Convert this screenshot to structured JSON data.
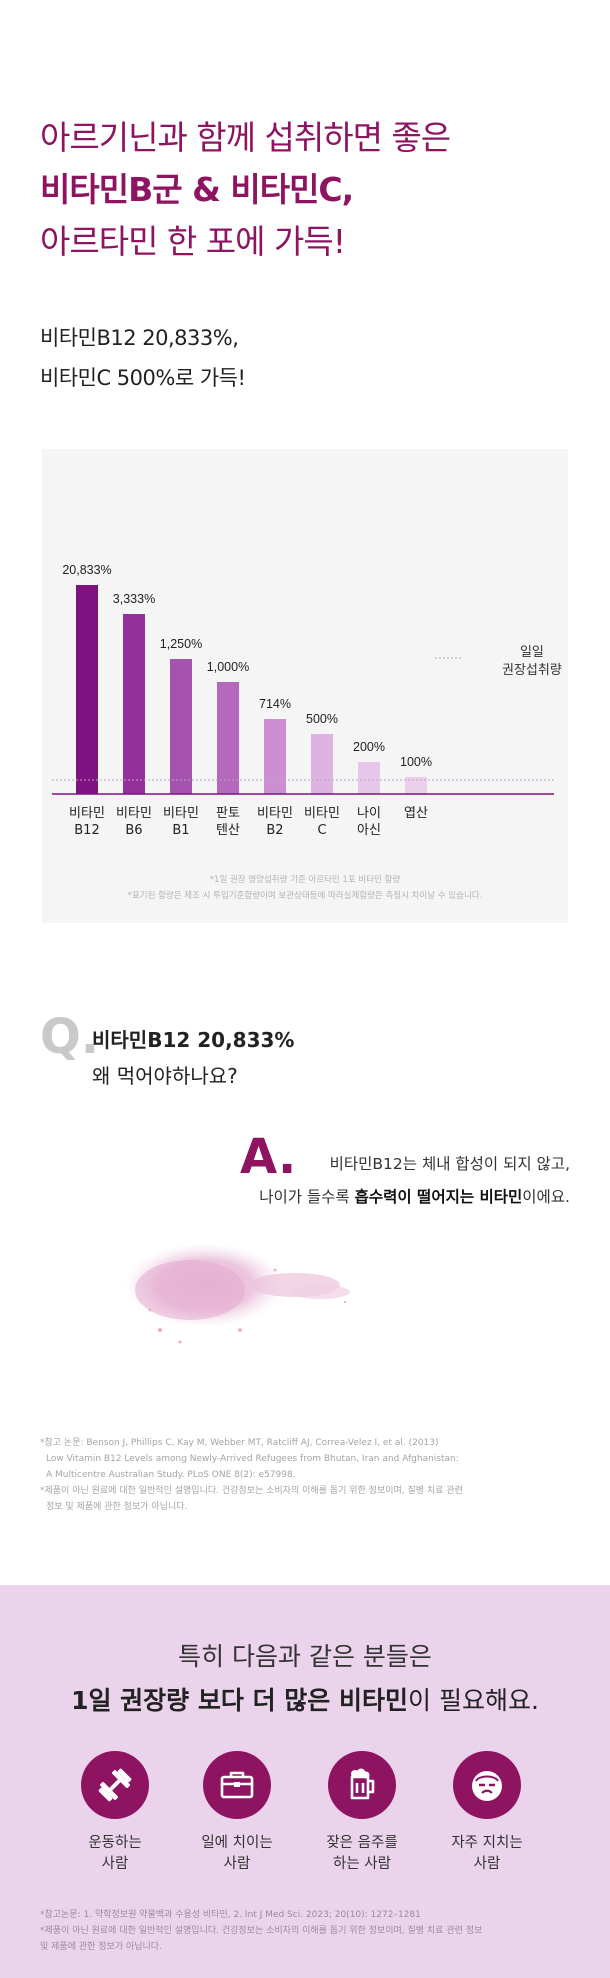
{
  "headline": {
    "line1": "아르기닌과 함께 섭취하면 좋은",
    "line2": "비타민B군 & 비타민C,",
    "line3": "아르타민 한 포에 가득!"
  },
  "subhead": {
    "line1": "비타민B12 20,833%,",
    "line2": "비타민C 500%로 가득!"
  },
  "chart_data": {
    "type": "bar",
    "categories": [
      "비타민\nB12",
      "비타민\nB6",
      "비타민\nB1",
      "판토\n텐산",
      "비타민\nB2",
      "비타민\nC",
      "나이\n아신",
      "엽산"
    ],
    "values": [
      20833,
      3333,
      1250,
      1000,
      714,
      500,
      200,
      100
    ],
    "value_labels": [
      "20,833%",
      "3,333%",
      "1,250%",
      "1,000%",
      "714%",
      "500%",
      "200%",
      "100%"
    ],
    "bar_colors": [
      "#7d1280",
      "#93309a",
      "#a553ae",
      "#b569bd",
      "#cc8fd1",
      "#deb3e3",
      "#e6c7e9",
      "#ebd0ec"
    ],
    "reference_line": {
      "label": "일일\n권장섭취량",
      "value": 100
    },
    "notes": [
      "*1일 권장 영양섭취량 기준 아르타민 1포 비타민 함량",
      "*표기된 함량은 제조 시 투입기준함량이며 보관상태등에 따라실제함량은 측정시 차이날 수 있습니다."
    ]
  },
  "qa": {
    "q_letter": "Q.",
    "q_line1": "비타민B12 20,833%",
    "q_line2": "왜 먹어야하나요?",
    "a_letter": "A.",
    "a_line1": "비타민B12는 체내 합성이 되지 않고,",
    "a_line2_pre": "나이가 들수록 ",
    "a_line2_bold": "흡수력이 떨어지는 비타민",
    "a_line2_post": "이에요."
  },
  "references": [
    "*참고 논문: Benson J, Phillips C, Kay M, Webber MT, Ratcliff AJ, Correa-Velez I, et al. (2013)",
    "Low Vitamin B12 Levels among Newly-Arrived Refugees from Bhutan, Iran and Afghanistan:",
    "A Multicentre Australian Study. PLoS ONE 8(2): e57998.",
    "*제품이 아닌 원료에 대한 일반적인 설명입니다. 건강정보는 소비자의 이해를 돕기 위한 정보이며, 질병 치료 관련",
    "정보 및 제품에 관한 정보가 아닙니다."
  ],
  "need_section": {
    "line1": "특히 다음과 같은 분들은",
    "line2_bold": "1일 권장량 보다 더 많은 비타민",
    "line2_post": "이 필요해요.",
    "items": [
      {
        "label": "운동하는\n사람",
        "icon": "dumbbell-icon"
      },
      {
        "label": "일에 치이는\n사람",
        "icon": "briefcase-icon"
      },
      {
        "label": "잦은 음주를\n하는 사람",
        "icon": "beer-mug-icon"
      },
      {
        "label": "자주 지치는\n사람",
        "icon": "tired-face-icon"
      }
    ],
    "refs": [
      "*참고논문: 1. 약학정보원 약물백과 수용성 비타민, 2. Int J Med Sci. 2023; 20(10): 1272–1281",
      "*제품이 아닌 원료에 대한 일반적인 설명입니다. 건강정보는 소비자의 이해를 돕기 위한 정보이며, 질병 치료 관련 정보",
      "및 제품에 관한 정보가 아닙니다."
    ]
  },
  "colors": {
    "brand": "#8e1462",
    "panel_bg": "#f6f5f6",
    "section_bg": "#ead3eb"
  }
}
